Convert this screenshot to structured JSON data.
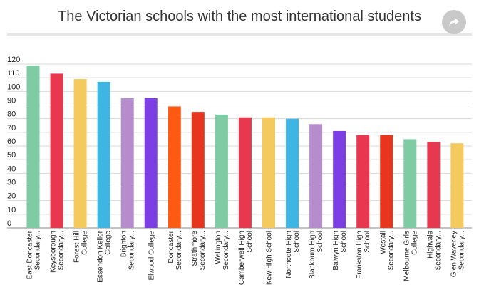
{
  "page": {
    "title": "The Victorian schools with the most international students",
    "share_icon": "share-icon"
  },
  "chart_data": {
    "type": "bar",
    "title": "The Victorian schools with the most international students",
    "xlabel": "",
    "ylabel": "",
    "ylim": [
      0,
      120
    ],
    "yticks": [
      0,
      10,
      20,
      30,
      40,
      50,
      60,
      70,
      80,
      90,
      100,
      110,
      120
    ],
    "grid": true,
    "categories": [
      [
        "East Doncaster",
        "Secondary..."
      ],
      [
        "Keysborough",
        "Secondary..."
      ],
      [
        "Forest Hill",
        "College"
      ],
      [
        "Essendon Keilor",
        "College"
      ],
      [
        "Brighton",
        "Secondary..."
      ],
      [
        "Elwood College"
      ],
      [
        "Doncaster",
        "Secondary..."
      ],
      [
        "Strathmore",
        "Secondary..."
      ],
      [
        "Wellington",
        "Secondary..."
      ],
      [
        "Camberwell High",
        "School"
      ],
      [
        "Kew High School"
      ],
      [
        "Northcote High",
        "School"
      ],
      [
        "Blackburn High",
        "School"
      ],
      [
        "Balwyn High",
        "School"
      ],
      [
        "Frankston High",
        "School"
      ],
      [
        "Westall",
        "Secondary..."
      ],
      [
        "Melbourne Girls",
        "College"
      ],
      [
        "Highvale",
        "Secondary..."
      ],
      [
        "Glen Waverley",
        "Secondary..."
      ]
    ],
    "values": [
      119,
      113,
      109,
      107,
      95,
      95,
      89,
      85,
      83,
      81,
      81,
      80,
      76,
      71,
      68,
      68,
      65,
      63,
      62
    ],
    "colors": [
      "#7fcba4",
      "#e8384f",
      "#f4c95d",
      "#3fb5e4",
      "#b58ccc",
      "#7b3fe4",
      "#ff5a13",
      "#e8351d",
      "#7fcba4",
      "#e8384f",
      "#f4c95d",
      "#3fb5e4",
      "#b58ccc",
      "#7b3fe4",
      "#e8384f",
      "#e8351d",
      "#7fcba4",
      "#e8384f",
      "#f4c95d"
    ]
  }
}
